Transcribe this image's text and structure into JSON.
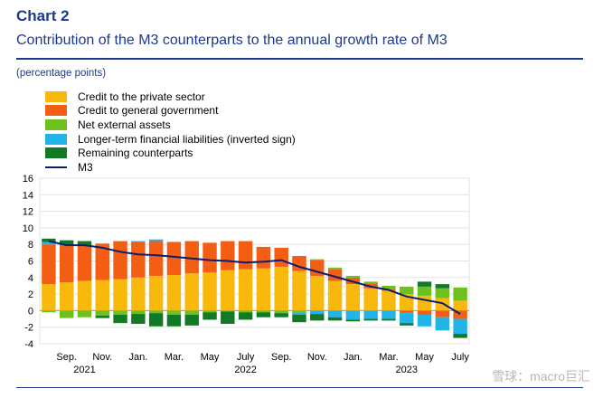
{
  "header": {
    "chart_number": "Chart 2",
    "subtitle": "Contribution of the M3 counterparts to the annual growth rate of M3",
    "unit": "(percentage points)"
  },
  "watermark": "雪球：macro巨汇",
  "colors": {
    "private": "#f9b80c",
    "government": "#f45d14",
    "external": "#6ec01f",
    "ltfl": "#22b3e8",
    "remaining": "#127a24",
    "m3": "#0b1e6e"
  },
  "chart_data": {
    "type": "bar",
    "stacked": true,
    "ylim": [
      -4,
      16
    ],
    "yticks": [
      -4,
      -2,
      0,
      2,
      4,
      6,
      8,
      10,
      12,
      14,
      16
    ],
    "grid": true,
    "x": [
      "Aug 2021",
      "Sep 2021",
      "Oct 2021",
      "Nov 2021",
      "Dec 2021",
      "Jan 2022",
      "Feb 2022",
      "Mar 2022",
      "Apr 2022",
      "May 2022",
      "Jun 2022",
      "Jul 2022",
      "Aug 2022",
      "Sep 2022",
      "Oct 2022",
      "Nov 2022",
      "Dec 2022",
      "Jan 2023",
      "Feb 2023",
      "Mar 2023",
      "Apr 2023",
      "May 2023",
      "Jun 2023",
      "Jul 2023"
    ],
    "x_tick_labels": [
      "Sep.",
      "Nov.",
      "Jan.",
      "Mar.",
      "May",
      "July",
      "Sep.",
      "Nov.",
      "Jan.",
      "Mar.",
      "May",
      "July"
    ],
    "x_year_labels": [
      "2021",
      "2022",
      "2023"
    ],
    "series": [
      {
        "name": "Credit to the private sector",
        "key": "private",
        "values": [
          3.2,
          3.4,
          3.6,
          3.7,
          3.8,
          4.0,
          4.2,
          4.3,
          4.5,
          4.6,
          4.9,
          5.0,
          5.1,
          5.3,
          4.8,
          4.2,
          3.6,
          3.2,
          2.7,
          2.4,
          2.0,
          1.8,
          1.5,
          1.2
        ]
      },
      {
        "name": "Credit to general government",
        "key": "government",
        "values": [
          4.8,
          4.4,
          4.2,
          4.4,
          4.6,
          4.3,
          4.2,
          4.0,
          3.9,
          3.6,
          3.5,
          3.4,
          2.6,
          2.3,
          1.8,
          1.9,
          1.4,
          0.8,
          0.6,
          0.2,
          -0.3,
          -0.5,
          -0.8,
          -1.0
        ]
      },
      {
        "name": "Net external assets",
        "key": "external",
        "values": [
          -0.2,
          -0.9,
          -0.8,
          -0.6,
          -0.5,
          -0.4,
          -0.3,
          -0.5,
          -0.5,
          -0.2,
          -0.1,
          -0.2,
          -0.2,
          -0.3,
          -0.2,
          0.1,
          0.2,
          0.2,
          0.2,
          0.4,
          0.9,
          1.1,
          1.2,
          1.6
        ]
      },
      {
        "name": "Longer-term financial liabilities (inverted sign)",
        "key": "ltfl",
        "values": [
          0.3,
          0.1,
          0.0,
          0.0,
          0.0,
          0.1,
          0.2,
          0.0,
          0.0,
          0.0,
          0.0,
          0.0,
          0.0,
          0.0,
          -0.3,
          -0.4,
          -0.8,
          -1.1,
          -1.0,
          -1.0,
          -1.2,
          -1.4,
          -1.6,
          -1.8
        ]
      },
      {
        "name": "Remaining counterparts",
        "key": "remaining",
        "values": [
          0.4,
          0.6,
          0.6,
          -0.3,
          -1.0,
          -1.2,
          -1.6,
          -1.4,
          -1.3,
          -0.9,
          -1.5,
          -0.9,
          -0.6,
          -0.5,
          -0.9,
          -0.8,
          -0.4,
          -0.2,
          -0.2,
          -0.2,
          -0.3,
          0.6,
          0.5,
          -0.5
        ]
      }
    ],
    "line": {
      "name": "M3",
      "key": "m3",
      "values": [
        8.4,
        7.9,
        7.9,
        7.6,
        7.1,
        6.8,
        6.7,
        6.5,
        6.3,
        6.1,
        6.0,
        5.8,
        5.9,
        6.1,
        5.3,
        4.7,
        4.1,
        3.5,
        2.9,
        2.5,
        1.7,
        1.3,
        0.9,
        -0.4
      ]
    }
  }
}
